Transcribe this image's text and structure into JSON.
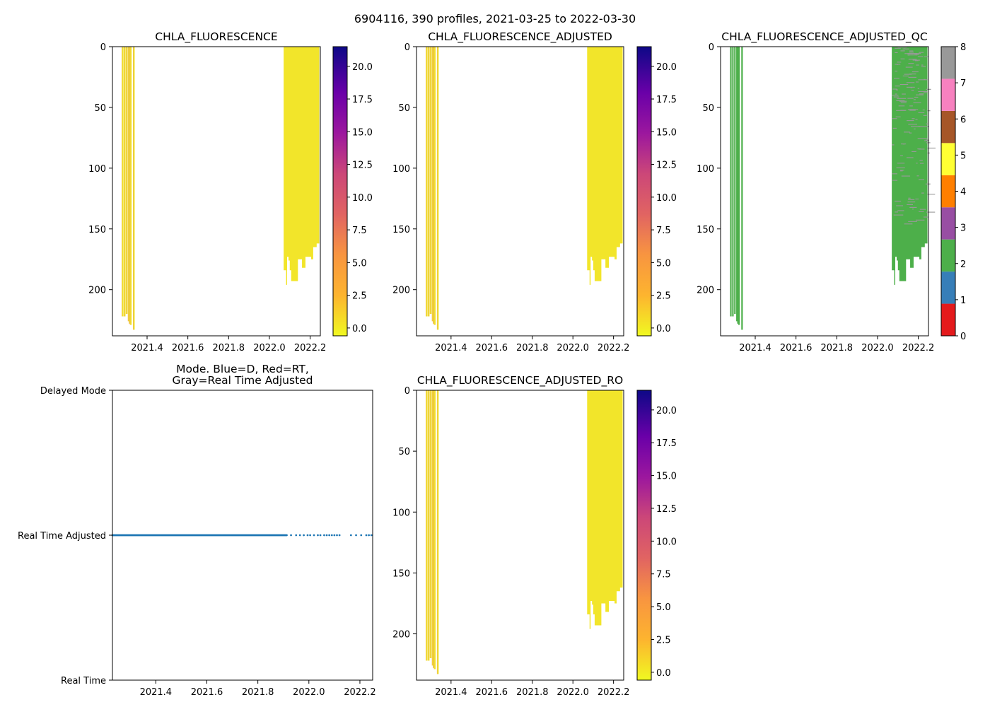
{
  "figure": {
    "suptitle": "6904116, 390 profiles, 2021-03-25 to 2022-03-30"
  },
  "colors": {
    "profile_fill": "#f2e52a",
    "profile_stroke": "#e8a35a",
    "qc_good": "#4daf4a",
    "qc_flag_gray": "#999999",
    "mode_dot": "#1f77b4",
    "axis": "#000000"
  },
  "chart_data": [
    {
      "id": "chla",
      "type": "heatmap",
      "title": "CHLA_FLUORESCENCE",
      "xlabel": "",
      "ylabel": "",
      "xlim": [
        2021.23,
        2022.25
      ],
      "ylim": [
        238,
        0
      ],
      "xticks": [
        "2021.4",
        "2021.6",
        "2021.8",
        "2022.0",
        "2022.2"
      ],
      "yticks": [
        "0",
        "50",
        "100",
        "150",
        "200"
      ],
      "colorbar": {
        "cmap": "plasma_r",
        "range": [
          -0.6,
          21.5
        ],
        "ticks": [
          "0.0",
          "2.5",
          "5.0",
          "7.5",
          "10.0",
          "12.5",
          "15.0",
          "17.5",
          "20.0"
        ]
      },
      "early_profiles": [
        {
          "t": 2021.28,
          "max_depth": 222
        },
        {
          "t": 2021.29,
          "max_depth": 222
        },
        {
          "t": 2021.3,
          "max_depth": 220
        },
        {
          "t": 2021.31,
          "max_depth": 226
        },
        {
          "t": 2021.315,
          "max_depth": 228
        },
        {
          "t": 2021.32,
          "max_depth": 229
        },
        {
          "t": 2021.335,
          "max_depth": 233
        }
      ],
      "late_block": {
        "t_start": 2022.07,
        "t_end": 2022.245,
        "max_depth_steps": [
          {
            "t": 2022.07,
            "d": 184
          },
          {
            "t": 2022.082,
            "d": 196
          },
          {
            "t": 2022.087,
            "d": 173
          },
          {
            "t": 2022.094,
            "d": 176
          },
          {
            "t": 2022.1,
            "d": 184
          },
          {
            "t": 2022.107,
            "d": 193
          },
          {
            "t": 2022.14,
            "d": 175
          },
          {
            "t": 2022.16,
            "d": 182
          },
          {
            "t": 2022.177,
            "d": 173
          },
          {
            "t": 2022.205,
            "d": 175
          },
          {
            "t": 2022.215,
            "d": 165
          },
          {
            "t": 2022.232,
            "d": 162
          },
          {
            "t": 2022.245,
            "d": 160
          }
        ]
      },
      "value_range": [
        -0.5,
        0.8
      ]
    },
    {
      "id": "chla_adj",
      "type": "heatmap",
      "title": "CHLA_FLUORESCENCE_ADJUSTED",
      "xlabel": "",
      "ylabel": "",
      "xlim": [
        2021.23,
        2022.25
      ],
      "ylim": [
        238,
        0
      ],
      "xticks": [
        "2021.4",
        "2021.6",
        "2021.8",
        "2022.0",
        "2022.2"
      ],
      "yticks": [
        "0",
        "50",
        "100",
        "150",
        "200"
      ],
      "colorbar": {
        "cmap": "plasma_r",
        "range": [
          -0.6,
          21.5
        ],
        "ticks": [
          "0.0",
          "2.5",
          "5.0",
          "7.5",
          "10.0",
          "12.5",
          "15.0",
          "17.5",
          "20.0"
        ]
      },
      "early_profiles": [
        {
          "t": 2021.28,
          "max_depth": 222
        },
        {
          "t": 2021.29,
          "max_depth": 222
        },
        {
          "t": 2021.3,
          "max_depth": 220
        },
        {
          "t": 2021.31,
          "max_depth": 226
        },
        {
          "t": 2021.315,
          "max_depth": 228
        },
        {
          "t": 2021.32,
          "max_depth": 229
        },
        {
          "t": 2021.335,
          "max_depth": 233
        }
      ],
      "late_block": {
        "t_start": 2022.07,
        "t_end": 2022.245,
        "max_depth_steps": [
          {
            "t": 2022.07,
            "d": 184
          },
          {
            "t": 2022.082,
            "d": 196
          },
          {
            "t": 2022.087,
            "d": 173
          },
          {
            "t": 2022.094,
            "d": 176
          },
          {
            "t": 2022.1,
            "d": 184
          },
          {
            "t": 2022.107,
            "d": 193
          },
          {
            "t": 2022.14,
            "d": 175
          },
          {
            "t": 2022.16,
            "d": 182
          },
          {
            "t": 2022.177,
            "d": 173
          },
          {
            "t": 2022.205,
            "d": 175
          },
          {
            "t": 2022.215,
            "d": 165
          },
          {
            "t": 2022.232,
            "d": 162
          },
          {
            "t": 2022.245,
            "d": 160
          }
        ]
      },
      "value_range": [
        -0.5,
        0.8
      ]
    },
    {
      "id": "chla_adj_qc",
      "type": "heatmap",
      "title": "CHLA_FLUORESCENCE_ADJUSTED_QC",
      "xlabel": "",
      "ylabel": "",
      "xlim": [
        2021.23,
        2022.25
      ],
      "ylim": [
        238,
        0
      ],
      "xticks": [
        "2021.4",
        "2021.6",
        "2021.8",
        "2022.0",
        "2022.2"
      ],
      "yticks": [
        "0",
        "50",
        "100",
        "150",
        "200"
      ],
      "colorbar": {
        "cmap": "Set1",
        "range": [
          0,
          8
        ],
        "ticks": [
          "0",
          "1",
          "2",
          "3",
          "4",
          "5",
          "6",
          "7",
          "8"
        ],
        "colors": [
          "#e41a1c",
          "#377eb8",
          "#4daf4a",
          "#984ea3",
          "#ff7f00",
          "#ffff33",
          "#a65628",
          "#f781bf",
          "#999999"
        ]
      },
      "early_profiles": [
        {
          "t": 2021.28,
          "max_depth": 222
        },
        {
          "t": 2021.29,
          "max_depth": 222
        },
        {
          "t": 2021.3,
          "max_depth": 220
        },
        {
          "t": 2021.31,
          "max_depth": 226
        },
        {
          "t": 2021.315,
          "max_depth": 228
        },
        {
          "t": 2021.32,
          "max_depth": 229
        },
        {
          "t": 2021.335,
          "max_depth": 233
        }
      ],
      "late_block": {
        "t_start": 2022.07,
        "t_end": 2022.245,
        "max_depth_steps": [
          {
            "t": 2022.07,
            "d": 184
          },
          {
            "t": 2022.082,
            "d": 196
          },
          {
            "t": 2022.087,
            "d": 173
          },
          {
            "t": 2022.094,
            "d": 176
          },
          {
            "t": 2022.1,
            "d": 184
          },
          {
            "t": 2022.107,
            "d": 193
          },
          {
            "t": 2022.14,
            "d": 175
          },
          {
            "t": 2022.16,
            "d": 182
          },
          {
            "t": 2022.177,
            "d": 173
          },
          {
            "t": 2022.205,
            "d": 175
          },
          {
            "t": 2022.215,
            "d": 165
          },
          {
            "t": 2022.232,
            "d": 162
          },
          {
            "t": 2022.245,
            "d": 160
          }
        ]
      },
      "qc_values": [
        2,
        8
      ]
    },
    {
      "id": "mode",
      "type": "scatter",
      "title": "Mode. Blue=D, Red=RT,\nGray=Real Time Adjusted",
      "xlabel": "",
      "ylabel": "",
      "xlim": [
        2021.23,
        2022.25
      ],
      "ylim": [
        0,
        2
      ],
      "xticks": [
        "2021.4",
        "2021.6",
        "2021.8",
        "2022.0",
        "2022.2"
      ],
      "ytick_labels": [
        "Real Time",
        "Real Time Adjusted",
        "Delayed Mode"
      ],
      "mode_value": 1,
      "dense_range": [
        2021.23,
        2021.915
      ],
      "sparse_points": [
        2021.93,
        2021.95,
        2021.965,
        2021.98,
        2021.995,
        2022.005,
        2022.02,
        2022.035,
        2022.045,
        2022.06,
        2022.07,
        2022.08,
        2022.09,
        2022.1,
        2022.11,
        2022.12,
        2022.165,
        2022.185,
        2022.205,
        2022.225,
        2022.235,
        2022.245
      ]
    },
    {
      "id": "chla_adj_ro",
      "type": "heatmap",
      "title": "CHLA_FLUORESCENCE_ADJUSTED_RO",
      "xlabel": "",
      "ylabel": "",
      "xlim": [
        2021.23,
        2022.25
      ],
      "ylim": [
        238,
        0
      ],
      "xticks": [
        "2021.4",
        "2021.6",
        "2021.8",
        "2022.0",
        "2022.2"
      ],
      "yticks": [
        "0",
        "50",
        "100",
        "150",
        "200"
      ],
      "colorbar": {
        "cmap": "plasma_r",
        "range": [
          -0.6,
          21.5
        ],
        "ticks": [
          "0.0",
          "2.5",
          "5.0",
          "7.5",
          "10.0",
          "12.5",
          "15.0",
          "17.5",
          "20.0"
        ]
      },
      "early_profiles": [
        {
          "t": 2021.28,
          "max_depth": 222
        },
        {
          "t": 2021.29,
          "max_depth": 222
        },
        {
          "t": 2021.3,
          "max_depth": 220
        },
        {
          "t": 2021.31,
          "max_depth": 226
        },
        {
          "t": 2021.315,
          "max_depth": 228
        },
        {
          "t": 2021.32,
          "max_depth": 229
        },
        {
          "t": 2021.335,
          "max_depth": 233
        }
      ],
      "late_block": {
        "t_start": 2022.07,
        "t_end": 2022.245,
        "max_depth_steps": [
          {
            "t": 2022.07,
            "d": 184
          },
          {
            "t": 2022.082,
            "d": 196
          },
          {
            "t": 2022.087,
            "d": 173
          },
          {
            "t": 2022.094,
            "d": 176
          },
          {
            "t": 2022.1,
            "d": 184
          },
          {
            "t": 2022.107,
            "d": 193
          },
          {
            "t": 2022.14,
            "d": 175
          },
          {
            "t": 2022.16,
            "d": 182
          },
          {
            "t": 2022.177,
            "d": 173
          },
          {
            "t": 2022.205,
            "d": 175
          },
          {
            "t": 2022.215,
            "d": 165
          },
          {
            "t": 2022.232,
            "d": 162
          },
          {
            "t": 2022.245,
            "d": 160
          }
        ]
      },
      "value_range": [
        -0.5,
        0.8
      ]
    }
  ]
}
